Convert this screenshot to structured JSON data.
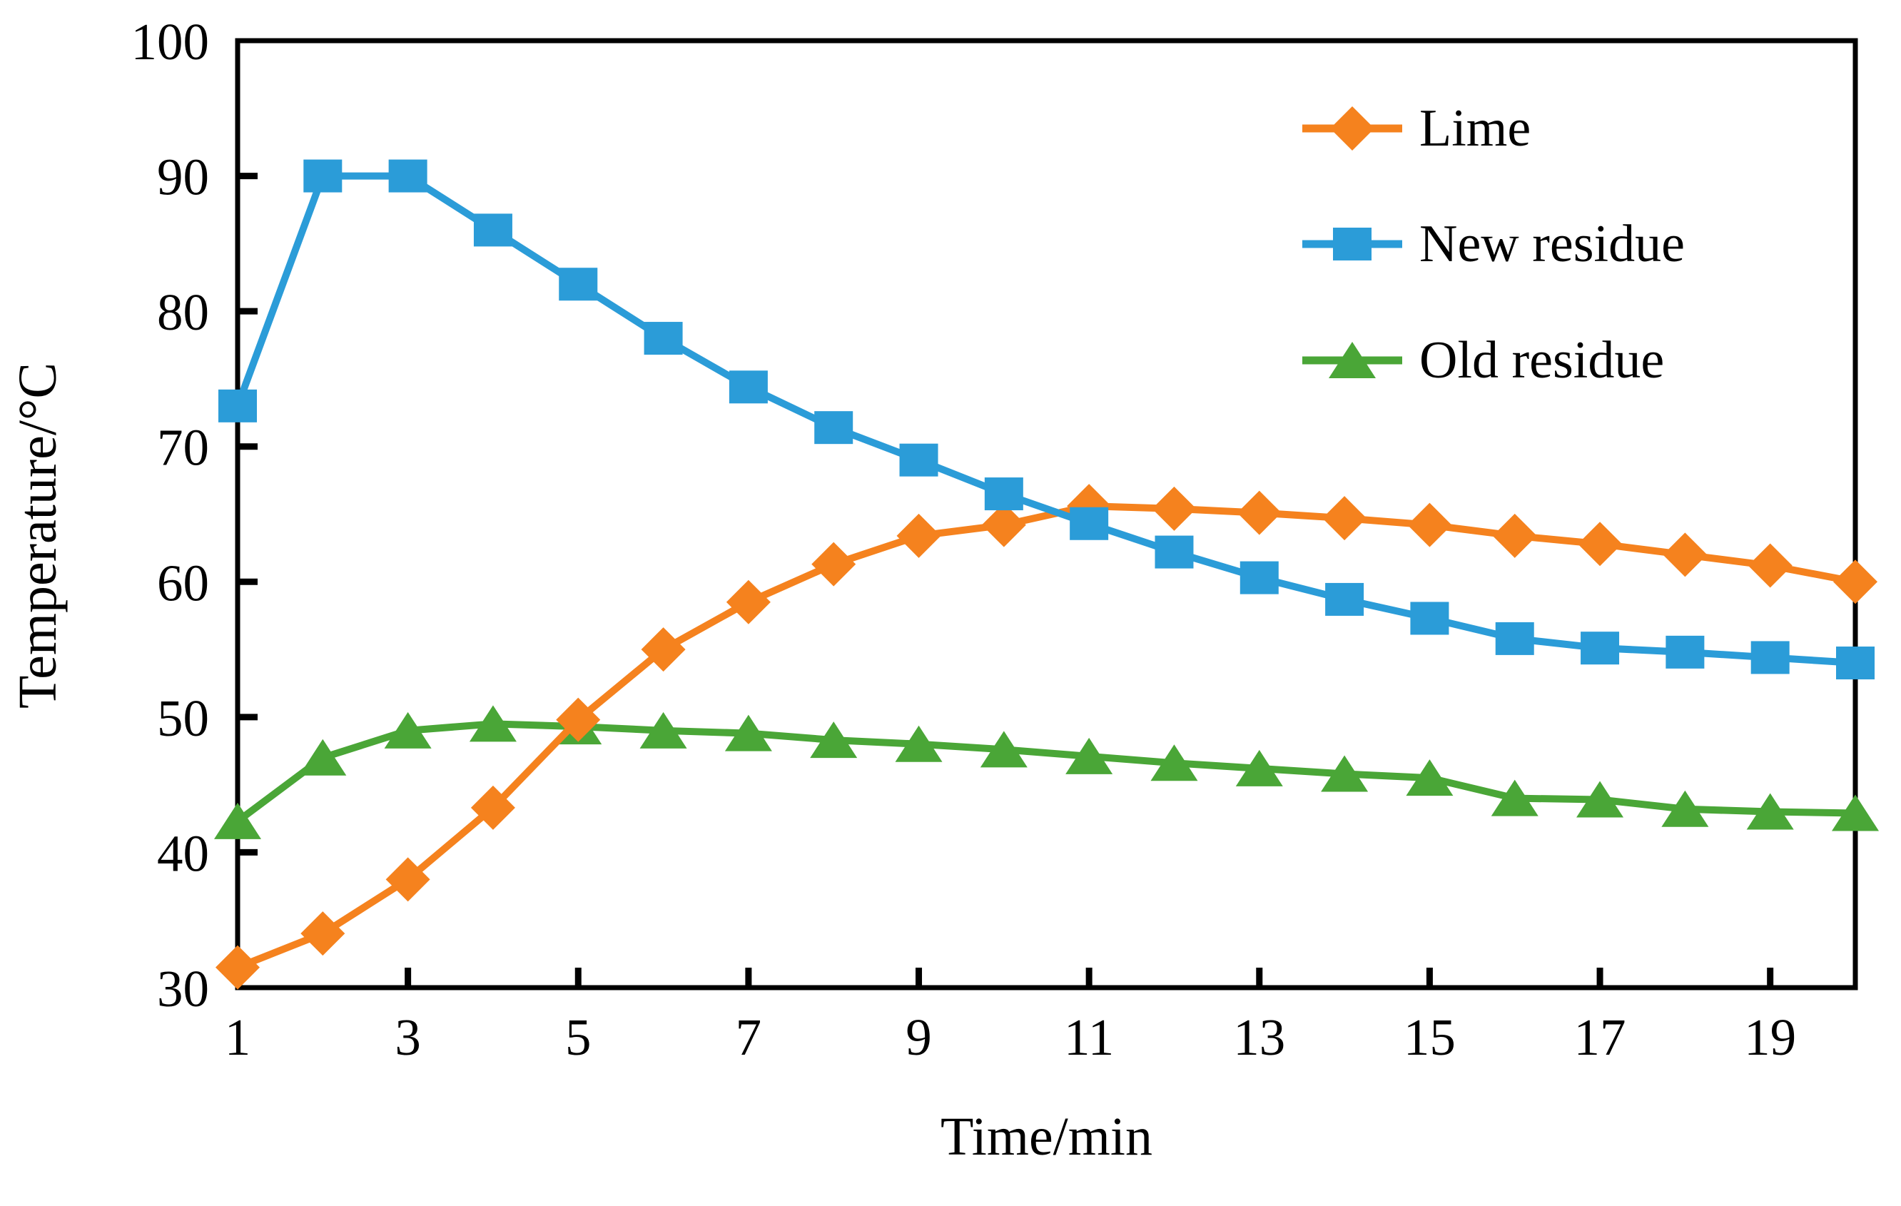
{
  "chart_data": {
    "type": "line",
    "title": "",
    "xlabel": "Time/min",
    "ylabel": "Temperature/°C",
    "x": [
      1,
      2,
      3,
      4,
      5,
      6,
      7,
      8,
      9,
      10,
      11,
      12,
      13,
      14,
      15,
      16,
      17,
      18,
      19,
      20
    ],
    "series": [
      {
        "name": "Lime",
        "color": "#F5821E",
        "marker": "diamond",
        "values": [
          31.5,
          34,
          38,
          43.3,
          49.8,
          55,
          58.5,
          61.3,
          63.4,
          64.2,
          65.6,
          65.4,
          65.1,
          64.7,
          64.2,
          63.4,
          62.8,
          62,
          61.2,
          60
        ]
      },
      {
        "name": "New residue",
        "color": "#2B9CD8",
        "marker": "square",
        "values": [
          73,
          90,
          90,
          86,
          82,
          78,
          74.4,
          71.4,
          69,
          66.5,
          64.3,
          62.2,
          60.3,
          58.7,
          57.3,
          55.8,
          55.1,
          54.8,
          54.4,
          54
        ]
      },
      {
        "name": "Old residue",
        "color": "#4AA637",
        "marker": "triangle",
        "values": [
          42.3,
          47,
          49,
          49.5,
          49.3,
          49,
          48.8,
          48.3,
          48,
          47.6,
          47.1,
          46.6,
          46.2,
          45.8,
          45.5,
          44,
          43.9,
          43.2,
          43,
          42.9
        ]
      }
    ],
    "xlim": [
      1,
      20
    ],
    "ylim": [
      30,
      100
    ],
    "ytick_labels": [
      30,
      40,
      50,
      60,
      70,
      80,
      90,
      100
    ],
    "ytick_marks": [
      40,
      50,
      60,
      70,
      80,
      90
    ],
    "xtick_labels": [
      1,
      3,
      5,
      7,
      9,
      11,
      13,
      15,
      17,
      19
    ],
    "xtick_marks": [
      3,
      5,
      7,
      9,
      11,
      13,
      15,
      17,
      19
    ],
    "grid": false,
    "legend_position": "upper right",
    "axis_color": "#000000",
    "background_color": "#ffffff"
  }
}
